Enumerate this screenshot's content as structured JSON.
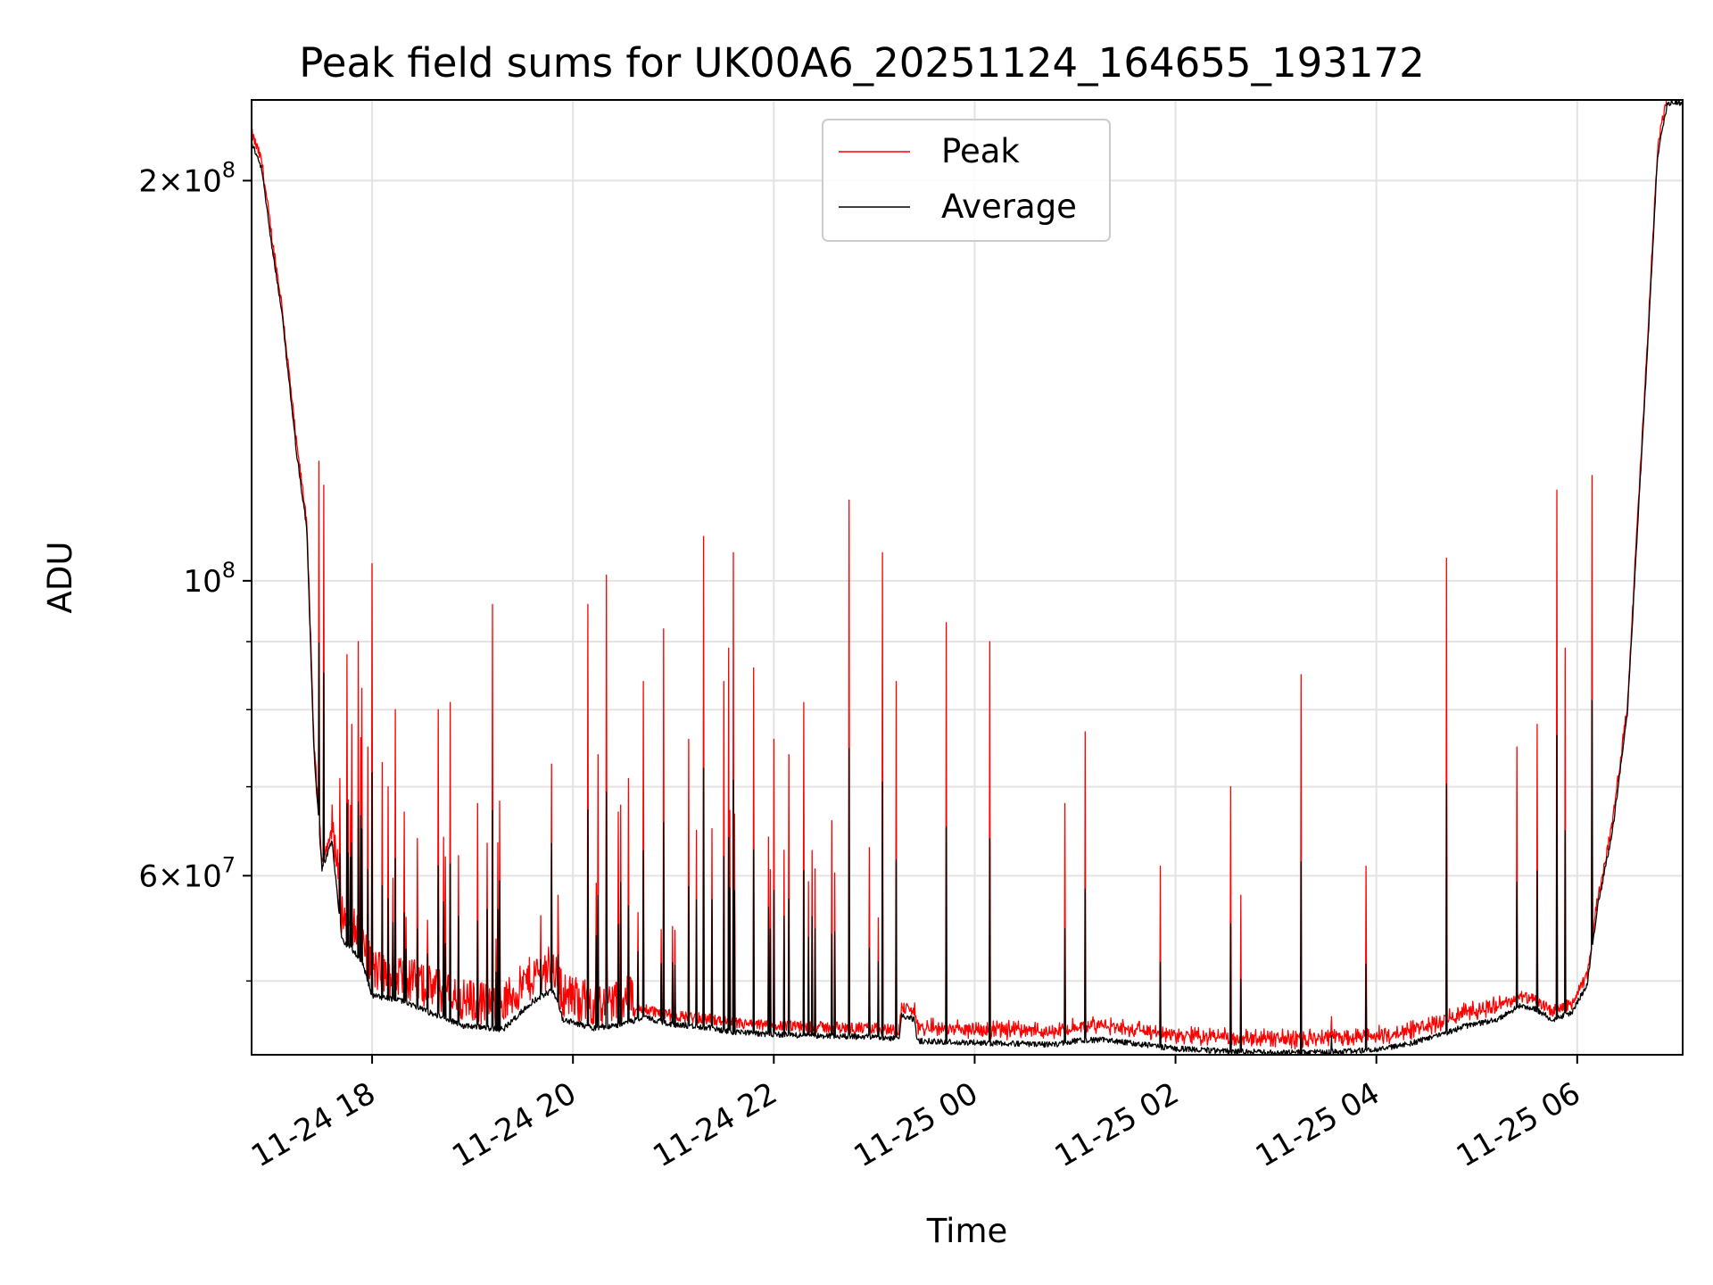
{
  "chart_data": {
    "type": "line",
    "title": "Peak field sums for UK00A6_20251124_164655_193172",
    "xlabel": "Time",
    "ylabel": "ADU",
    "yscale": "log",
    "ylim": [
      44000000,
      230000000
    ],
    "xlim_hours": [
      16.8,
      31.05
    ],
    "grid": true,
    "legend_position": "upper center",
    "x_ticks": [
      {
        "h": 18,
        "label": "11-24 18"
      },
      {
        "h": 20,
        "label": "11-24 20"
      },
      {
        "h": 22,
        "label": "11-24 22"
      },
      {
        "h": 24,
        "label": "11-25 00"
      },
      {
        "h": 26,
        "label": "11-25 02"
      },
      {
        "h": 28,
        "label": "11-25 04"
      },
      {
        "h": 30,
        "label": "11-25 06"
      }
    ],
    "y_major_ticks": [
      {
        "value": 200000000,
        "mantissa": "2×",
        "base": "10",
        "exp": "8"
      },
      {
        "value": 100000000,
        "mantissa": "",
        "base": "10",
        "exp": "8"
      },
      {
        "value": 60000000,
        "mantissa": "6×",
        "base": "10",
        "exp": "7"
      }
    ],
    "y_minor_ticks": [
      50000000,
      70000000,
      80000000,
      90000000
    ],
    "baseline": [
      [
        16.8,
        215000000
      ],
      [
        16.9,
        205000000
      ],
      [
        17.0,
        180000000
      ],
      [
        17.1,
        160000000
      ],
      [
        17.25,
        125000000
      ],
      [
        17.35,
        110000000
      ],
      [
        17.42,
        75000000
      ],
      [
        17.5,
        61000000
      ],
      [
        17.6,
        64000000
      ],
      [
        17.7,
        54000000
      ],
      [
        17.9,
        52000000
      ],
      [
        18.0,
        49000000
      ],
      [
        18.3,
        48500000
      ],
      [
        18.6,
        47500000
      ],
      [
        18.9,
        46500000
      ],
      [
        19.3,
        46200000
      ],
      [
        19.6,
        48500000
      ],
      [
        19.8,
        49500000
      ],
      [
        19.9,
        47000000
      ],
      [
        20.2,
        46300000
      ],
      [
        20.5,
        46600000
      ],
      [
        20.7,
        47200000
      ],
      [
        21.0,
        46600000
      ],
      [
        21.3,
        46400000
      ],
      [
        21.6,
        46000000
      ],
      [
        22.0,
        45800000
      ],
      [
        22.5,
        45700000
      ],
      [
        23.0,
        45600000
      ],
      [
        23.25,
        45500000
      ],
      [
        23.27,
        47300000
      ],
      [
        23.4,
        47000000
      ],
      [
        23.43,
        45300000
      ],
      [
        23.8,
        45200000
      ],
      [
        24.3,
        45100000
      ],
      [
        24.8,
        45000000
      ],
      [
        25.0,
        45300000
      ],
      [
        25.3,
        45400000
      ],
      [
        25.6,
        45100000
      ],
      [
        26.0,
        44700000
      ],
      [
        26.5,
        44500000
      ],
      [
        27.0,
        44400000
      ],
      [
        27.5,
        44400000
      ],
      [
        28.0,
        44600000
      ],
      [
        28.3,
        45000000
      ],
      [
        28.6,
        45700000
      ],
      [
        28.9,
        46500000
      ],
      [
        29.2,
        47000000
      ],
      [
        29.45,
        48200000
      ],
      [
        29.6,
        47800000
      ],
      [
        29.75,
        47000000
      ],
      [
        29.95,
        47600000
      ],
      [
        30.1,
        50000000
      ],
      [
        30.2,
        57000000
      ],
      [
        30.35,
        65000000
      ],
      [
        30.5,
        80000000
      ],
      [
        30.6,
        110000000
      ],
      [
        30.7,
        150000000
      ],
      [
        30.8,
        210000000
      ],
      [
        30.9,
        230000000
      ],
      [
        31.05,
        230000000
      ]
    ],
    "series": [
      {
        "name": "Peak",
        "color": "#ff0000",
        "spikes": [
          [
            17.47,
            123000000
          ],
          [
            17.52,
            118000000
          ],
          [
            17.68,
            71000000
          ],
          [
            17.75,
            88000000
          ],
          [
            17.8,
            78000000
          ],
          [
            17.86,
            90000000
          ],
          [
            17.9,
            83000000
          ],
          [
            17.96,
            75000000
          ],
          [
            18.0,
            103000000
          ],
          [
            18.1,
            73000000
          ],
          [
            18.16,
            70000000
          ],
          [
            18.23,
            80000000
          ],
          [
            18.32,
            67000000
          ],
          [
            18.45,
            64000000
          ],
          [
            18.66,
            80000000
          ],
          [
            18.73,
            62000000
          ],
          [
            18.78,
            81000000
          ],
          [
            19.05,
            68000000
          ],
          [
            19.2,
            96000000
          ],
          [
            19.68,
            56000000
          ],
          [
            19.85,
            58000000
          ],
          [
            20.15,
            96000000
          ],
          [
            20.25,
            74000000
          ],
          [
            20.33,
            101000000
          ],
          [
            20.45,
            67000000
          ],
          [
            20.55,
            71000000
          ],
          [
            20.7,
            84000000
          ],
          [
            20.9,
            92000000
          ],
          [
            21.15,
            76000000
          ],
          [
            21.3,
            108000000
          ],
          [
            21.5,
            84000000
          ],
          [
            21.55,
            89000000
          ],
          [
            21.6,
            105000000
          ],
          [
            21.8,
            86000000
          ],
          [
            22.0,
            76000000
          ],
          [
            22.15,
            74000000
          ],
          [
            22.3,
            81000000
          ],
          [
            22.58,
            66000000
          ],
          [
            22.75,
            115000000
          ],
          [
            22.95,
            63000000
          ],
          [
            23.08,
            105000000
          ],
          [
            23.22,
            84000000
          ],
          [
            23.72,
            93000000
          ],
          [
            24.15,
            90000000
          ],
          [
            24.9,
            68000000
          ],
          [
            25.1,
            77000000
          ],
          [
            25.85,
            61000000
          ],
          [
            26.55,
            70000000
          ],
          [
            26.65,
            58000000
          ],
          [
            27.25,
            85000000
          ],
          [
            27.55,
            47000000
          ],
          [
            27.9,
            61000000
          ],
          [
            28.7,
            104000000
          ],
          [
            29.4,
            75000000
          ],
          [
            29.6,
            78000000
          ],
          [
            29.8,
            117000000
          ],
          [
            29.88,
            89000000
          ],
          [
            30.15,
            120000000
          ]
        ]
      },
      {
        "name": "Average",
        "color": "#000000"
      }
    ]
  }
}
